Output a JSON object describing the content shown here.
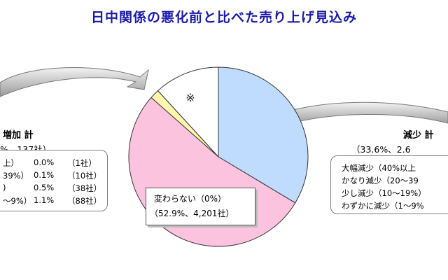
{
  "title": "日中関係の悪化前と比べた売り上げ見込み",
  "chart_data": {
    "type": "pie",
    "slices": [
      {
        "label": "減少 計",
        "value": 33.6,
        "color": "#bfdcff"
      },
      {
        "label": "変わらない",
        "value": 52.9,
        "color": "#fcc3df"
      },
      {
        "label": "増加 計",
        "value": 1.7,
        "color": "#fff7ad"
      },
      {
        "label": "※",
        "value": 11.8,
        "color": "#ffffff"
      }
    ],
    "note_mark": "※"
  },
  "increase": {
    "heading": "増加 計",
    "summary": "%、137社）",
    "rows": [
      {
        "range": "上）",
        "pct": "0.0%",
        "count": "（1社）"
      },
      {
        "range": "39%）",
        "pct": "0.1%",
        "count": "（10社）"
      },
      {
        "range": ")",
        "pct": "0.5%",
        "count": "（38社）"
      },
      {
        "range": "〜9%）",
        "pct": "1.1%",
        "count": "（88社）"
      }
    ]
  },
  "decrease": {
    "heading": "減少 計",
    "summary": "（33.6%、2.6",
    "rows": [
      "大幅減少（40%以上",
      "かなり減少（20〜39",
      "少し減少（10〜19%）",
      "わずかに減少（1〜9%"
    ]
  },
  "no_change": {
    "label": "変わらない（0%）",
    "detail": "（52.9%、4,201社）"
  }
}
